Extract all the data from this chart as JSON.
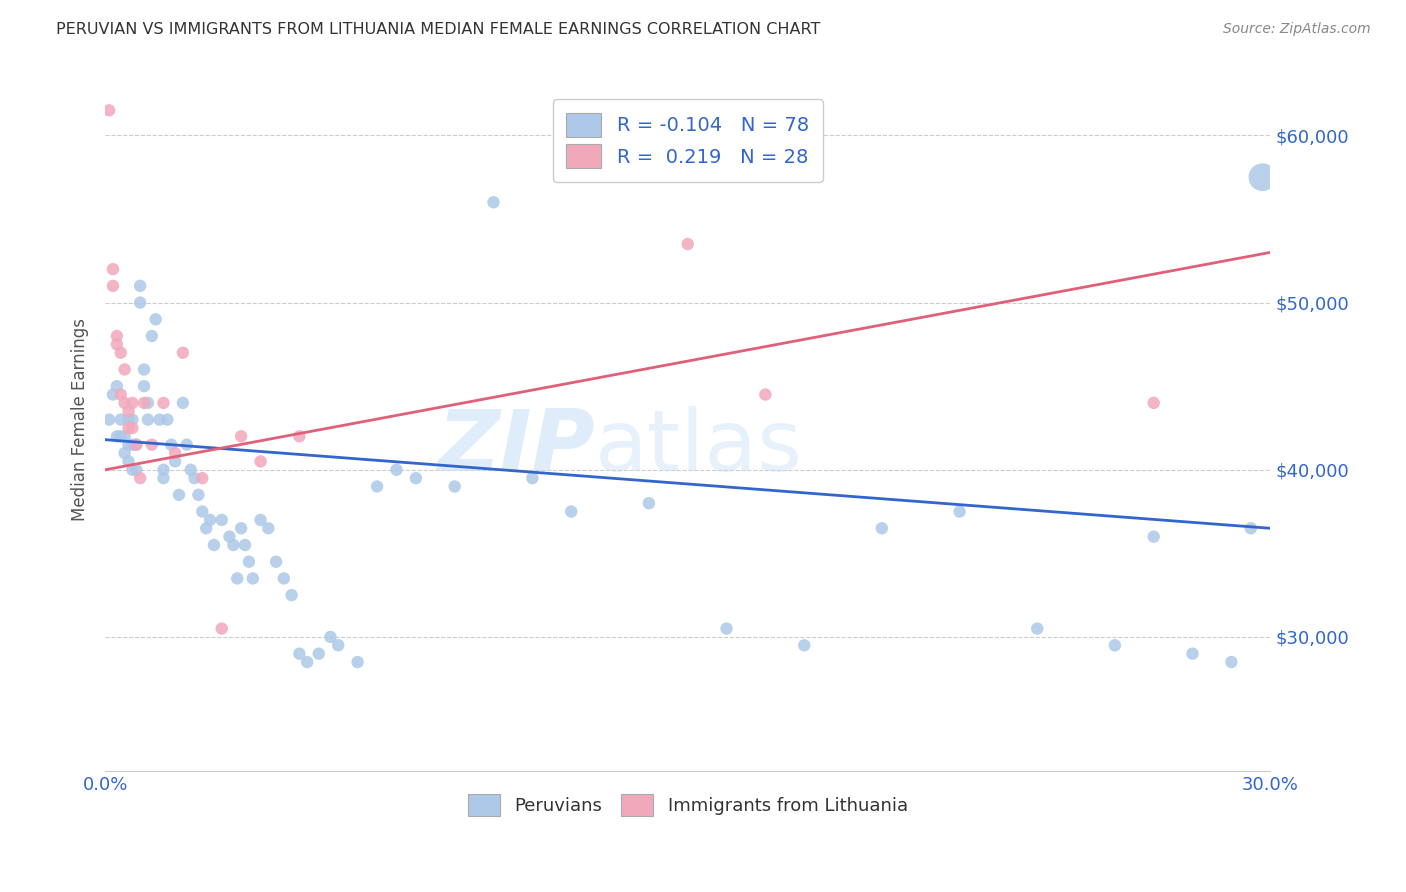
{
  "title": "PERUVIAN VS IMMIGRANTS FROM LITHUANIA MEDIAN FEMALE EARNINGS CORRELATION CHART",
  "source": "Source: ZipAtlas.com",
  "ylabel": "Median Female Earnings",
  "ytick_labels": [
    "$30,000",
    "$40,000",
    "$50,000",
    "$60,000"
  ],
  "ytick_values": [
    30000,
    40000,
    50000,
    60000
  ],
  "xlim": [
    0.0,
    0.3
  ],
  "ylim": [
    22000,
    64000
  ],
  "watermark": "ZIPatlas",
  "legend_R_peruvian": "-0.104",
  "legend_N_peruvian": "78",
  "legend_R_lithuania": "0.219",
  "legend_N_lithuania": "28",
  "peruvian_color": "#adc8e8",
  "lithuania_color": "#f2a8bb",
  "peruvian_line_color": "#3366cc",
  "lithuania_line_color": "#e0607a",
  "peruvian_scatter": {
    "x": [
      0.001,
      0.002,
      0.003,
      0.003,
      0.004,
      0.004,
      0.005,
      0.005,
      0.006,
      0.006,
      0.006,
      0.007,
      0.007,
      0.007,
      0.008,
      0.008,
      0.009,
      0.009,
      0.01,
      0.01,
      0.011,
      0.011,
      0.012,
      0.013,
      0.014,
      0.015,
      0.015,
      0.016,
      0.017,
      0.018,
      0.019,
      0.02,
      0.021,
      0.022,
      0.023,
      0.024,
      0.025,
      0.026,
      0.027,
      0.028,
      0.03,
      0.032,
      0.033,
      0.034,
      0.035,
      0.036,
      0.037,
      0.038,
      0.04,
      0.042,
      0.044,
      0.046,
      0.048,
      0.05,
      0.052,
      0.055,
      0.058,
      0.06,
      0.065,
      0.07,
      0.075,
      0.08,
      0.09,
      0.1,
      0.11,
      0.12,
      0.14,
      0.16,
      0.18,
      0.2,
      0.22,
      0.24,
      0.26,
      0.27,
      0.28,
      0.29,
      0.295,
      0.298
    ],
    "y": [
      43000,
      44500,
      42000,
      45000,
      43000,
      42000,
      42000,
      41000,
      43000,
      41500,
      40500,
      40000,
      41500,
      43000,
      40000,
      41500,
      51000,
      50000,
      45000,
      46000,
      44000,
      43000,
      48000,
      49000,
      43000,
      40000,
      39500,
      43000,
      41500,
      40500,
      38500,
      44000,
      41500,
      40000,
      39500,
      38500,
      37500,
      36500,
      37000,
      35500,
      37000,
      36000,
      35500,
      33500,
      36500,
      35500,
      34500,
      33500,
      37000,
      36500,
      34500,
      33500,
      32500,
      29000,
      28500,
      29000,
      30000,
      29500,
      28500,
      39000,
      40000,
      39500,
      39000,
      56000,
      39500,
      37500,
      38000,
      30500,
      29500,
      36500,
      37500,
      30500,
      29500,
      36000,
      29000,
      28500,
      36500,
      57500
    ]
  },
  "peruvian_sizes": [
    80,
    80,
    80,
    80,
    80,
    80,
    80,
    80,
    80,
    80,
    80,
    80,
    80,
    80,
    80,
    80,
    80,
    80,
    80,
    80,
    80,
    80,
    80,
    80,
    80,
    80,
    80,
    80,
    80,
    80,
    80,
    80,
    80,
    80,
    80,
    80,
    80,
    80,
    80,
    80,
    80,
    80,
    80,
    80,
    80,
    80,
    80,
    80,
    80,
    80,
    80,
    80,
    80,
    80,
    80,
    80,
    80,
    80,
    80,
    80,
    80,
    80,
    80,
    80,
    80,
    80,
    80,
    80,
    80,
    80,
    80,
    80,
    80,
    80,
    80,
    80,
    80,
    400
  ],
  "lithuania_scatter": {
    "x": [
      0.001,
      0.002,
      0.002,
      0.003,
      0.003,
      0.004,
      0.004,
      0.005,
      0.005,
      0.006,
      0.006,
      0.007,
      0.007,
      0.008,
      0.009,
      0.01,
      0.012,
      0.015,
      0.018,
      0.02,
      0.025,
      0.03,
      0.035,
      0.04,
      0.05,
      0.15,
      0.17,
      0.27
    ],
    "y": [
      61500,
      52000,
      51000,
      48000,
      47500,
      47000,
      44500,
      46000,
      44000,
      43500,
      42500,
      44000,
      42500,
      41500,
      39500,
      44000,
      41500,
      44000,
      41000,
      47000,
      39500,
      30500,
      42000,
      40500,
      42000,
      53500,
      44500,
      44000
    ]
  },
  "peruvian_trendline": {
    "x": [
      0.0,
      0.3
    ],
    "y": [
      41800,
      36500
    ]
  },
  "lithuania_trendline": {
    "x": [
      0.0,
      0.3
    ],
    "y": [
      40000,
      53000
    ]
  },
  "xtick_positions": [
    0.0,
    0.05,
    0.1,
    0.15,
    0.2,
    0.25,
    0.3
  ]
}
